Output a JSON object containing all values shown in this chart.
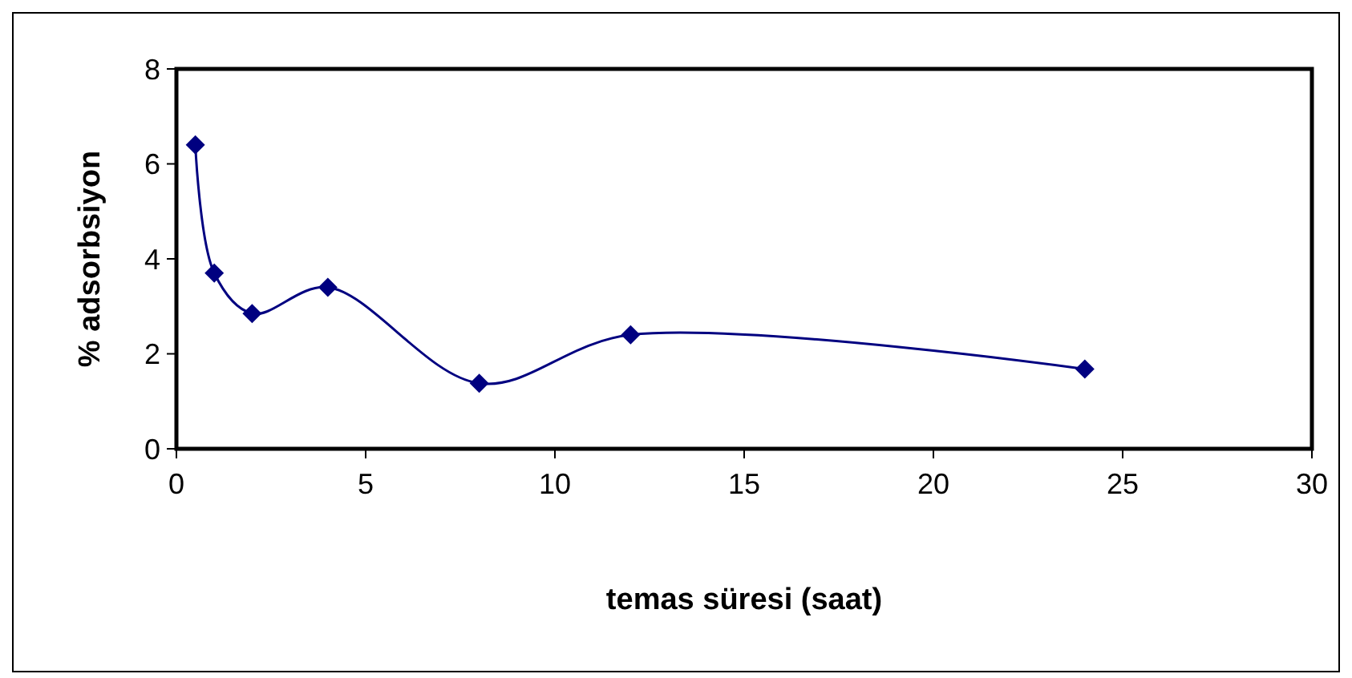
{
  "chart_data": {
    "type": "line",
    "xlabel": "temas süresi (saat)",
    "ylabel": "% adsorbsiyon",
    "x": [
      0.5,
      1,
      2,
      4,
      8,
      12,
      24
    ],
    "series": [
      {
        "color": "#000080",
        "values": [
          6.4,
          3.7,
          2.85,
          3.4,
          1.38,
          2.4,
          1.68
        ]
      }
    ],
    "xlim": [
      0,
      30
    ],
    "xticks": [
      0,
      5,
      10,
      15,
      20,
      25,
      30
    ],
    "ylim": [
      0,
      8
    ],
    "yticks": [
      0,
      2,
      4,
      6,
      8
    ],
    "grid": false,
    "marker": "diamond",
    "line_style": "solid"
  }
}
